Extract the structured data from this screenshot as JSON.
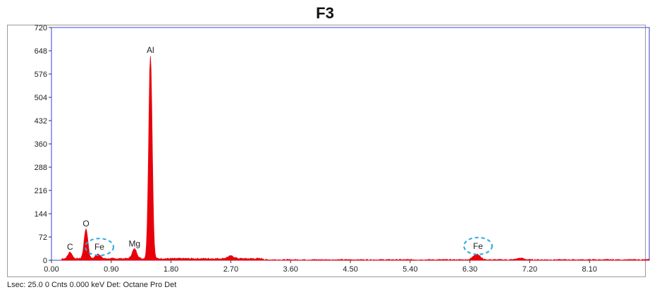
{
  "title": "F3",
  "status_line": "Lsec: 25.0 0 Cnts  0.000 keV Det: Octane Pro Det",
  "colors": {
    "spectrum": "#e8000b",
    "plot_border": "#3c3ce0",
    "frame": "#9a9a9a",
    "highlight": "#29a8e0"
  },
  "chart_data": {
    "type": "area",
    "xlim": [
      0.0,
      9.0
    ],
    "ylim": [
      0,
      720
    ],
    "x_ticks": [
      "0.00",
      "0.90",
      "1.80",
      "2.70",
      "3.60",
      "4.50",
      "5.40",
      "6.30",
      "7.20",
      "8.10"
    ],
    "y_ticks": [
      "0",
      "72",
      "144",
      "216",
      "288",
      "360",
      "432",
      "504",
      "576",
      "648",
      "720"
    ],
    "grid": false,
    "peaks": [
      {
        "element": "C",
        "keV": 0.28,
        "counts": 20,
        "width": 0.03
      },
      {
        "element": "O",
        "keV": 0.52,
        "counts": 92,
        "width": 0.028
      },
      {
        "element": "Fe",
        "keV": 0.7,
        "counts": 15,
        "width": 0.035
      },
      {
        "element": "Mg",
        "keV": 1.25,
        "counts": 30,
        "width": 0.035
      },
      {
        "element": "Al",
        "keV": 1.49,
        "counts": 628,
        "width": 0.026
      },
      {
        "element": "",
        "keV": 2.7,
        "counts": 8,
        "width": 0.05
      },
      {
        "element": "Fe",
        "keV": 6.4,
        "counts": 18,
        "width": 0.05
      },
      {
        "element": "",
        "keV": 7.06,
        "counts": 5,
        "width": 0.05
      }
    ],
    "annotations": [
      {
        "text": "C",
        "keV": 0.28,
        "counts": 20
      },
      {
        "text": "O",
        "keV": 0.52,
        "counts": 92
      },
      {
        "text": "Fe",
        "keV": 0.7,
        "counts": 15,
        "circled": true
      },
      {
        "text": "Mg",
        "keV": 1.25,
        "counts": 30
      },
      {
        "text": "Al",
        "keV": 1.49,
        "counts": 628
      },
      {
        "text": "Fe",
        "keV": 6.4,
        "counts": 18,
        "circled": true
      }
    ]
  }
}
